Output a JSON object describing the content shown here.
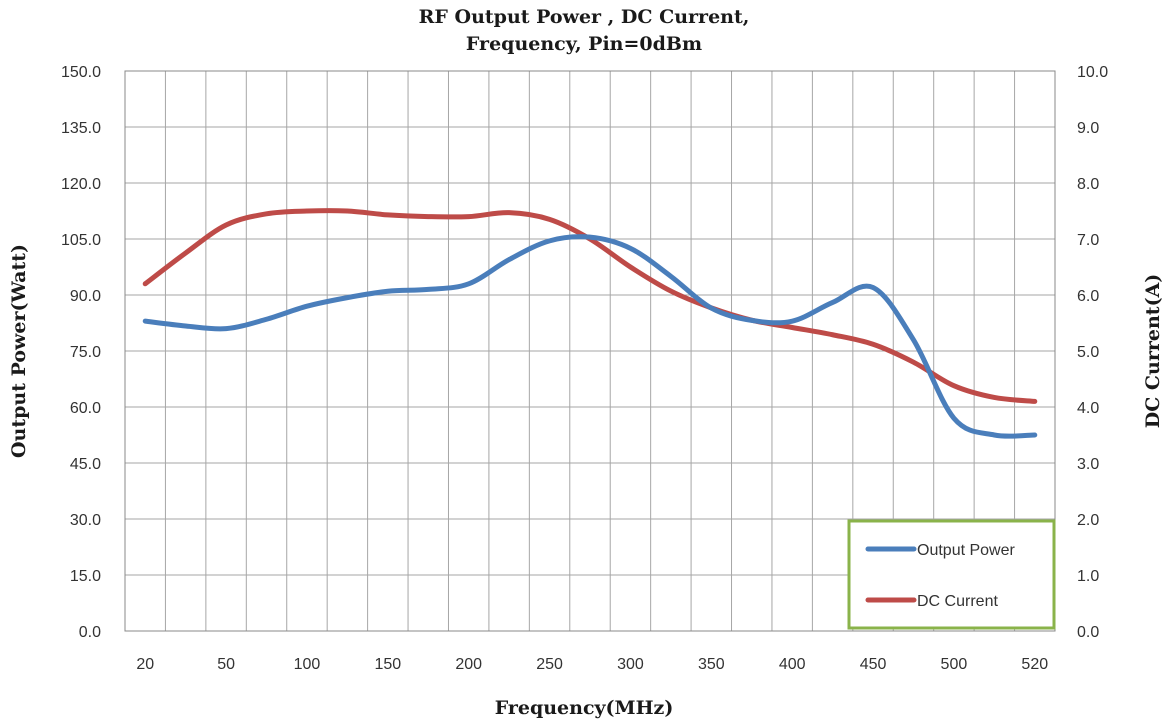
{
  "chart_data": {
    "type": "line",
    "title": [
      "RF Output Power , DC Current,",
      "Frequency, Pin=0dBm"
    ],
    "xlabel": "Frequency(MHz)",
    "ylabel_left": "Output  Power(Watt)",
    "ylabel_right": "DC Current(A)",
    "categories": [
      "20",
      "",
      "50",
      "",
      "100",
      "",
      "150",
      "",
      "200",
      "",
      "250",
      "",
      "300",
      "",
      "350",
      "",
      "400",
      "",
      "450",
      "",
      "500",
      "",
      "520"
    ],
    "left_axis": {
      "min": 0,
      "max": 150,
      "step": 15,
      "tick_labels": [
        "0.0",
        "15.0",
        "30.0",
        "45.0",
        "60.0",
        "75.0",
        "90.0",
        "105.0",
        "120.0",
        "135.0",
        "150.0"
      ]
    },
    "right_axis": {
      "min": 0,
      "max": 10,
      "step": 1,
      "tick_labels": [
        "0.0",
        "1.0",
        "2.0",
        "3.0",
        "4.0",
        "5.0",
        "6.0",
        "7.0",
        "8.0",
        "9.0",
        "10.0"
      ]
    },
    "series": [
      {
        "name": "Output Power",
        "axis": "left",
        "color": "#4a7ebb",
        "values": [
          83,
          81.7,
          81,
          83.5,
          87,
          89.3,
          91,
          91.5,
          93,
          99.5,
          104.5,
          105.5,
          102.5,
          95,
          86.5,
          83.2,
          83,
          88,
          92,
          78,
          57,
          52.5,
          52.5
        ]
      },
      {
        "name": "DC Current",
        "axis": "right",
        "color": "#be4b48",
        "values": [
          6.2,
          6.75,
          7.25,
          7.45,
          7.5,
          7.5,
          7.43,
          7.4,
          7.4,
          7.47,
          7.35,
          7.0,
          6.5,
          6.07,
          5.77,
          5.55,
          5.42,
          5.29,
          5.12,
          4.8,
          4.38,
          4.17,
          4.1
        ]
      }
    ],
    "grid": true,
    "legend": {
      "position": "bottom-right",
      "border_color": "#8ab34a"
    }
  }
}
